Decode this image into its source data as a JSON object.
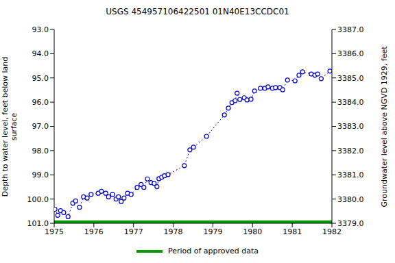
{
  "chart_data": {
    "type": "line",
    "title": "USGS 454957106422501 01N40E13CCDC01",
    "y_label": "Depth to water level, feet below land surface",
    "y_label_lines": [
      "Depth to water level, feet below land",
      "surface"
    ],
    "y2_label": "Groundwater level above NGVD 1929, feet",
    "xlim": [
      1975,
      1982
    ],
    "xticks": [
      1975,
      1976,
      1977,
      1978,
      1979,
      1980,
      1981,
      1982
    ],
    "ylim": [
      93,
      101
    ],
    "yticks": [
      {
        "value": 93,
        "label": "93.0"
      },
      {
        "value": 94,
        "label": "94.0"
      },
      {
        "value": 95,
        "label": "95.0"
      },
      {
        "value": 96,
        "label": "96.0"
      },
      {
        "value": 97,
        "label": "97.0"
      },
      {
        "value": 98,
        "label": "98.0"
      },
      {
        "value": 99,
        "label": "99.0"
      },
      {
        "value": 100,
        "label": "100.0"
      },
      {
        "value": 101,
        "label": "101.0"
      }
    ],
    "y2lim": [
      3379,
      3387
    ],
    "y2ticks": [
      {
        "value": 3379,
        "label": "3379.0"
      },
      {
        "value": 3380,
        "label": "3380.0"
      },
      {
        "value": 3381,
        "label": "3381.0"
      },
      {
        "value": 3382,
        "label": "3382.0"
      },
      {
        "value": 3383,
        "label": "3383.0"
      },
      {
        "value": 3384,
        "label": "3384.0"
      },
      {
        "value": 3385,
        "label": "3385.0"
      },
      {
        "value": 3386,
        "label": "3386.0"
      },
      {
        "value": 3387,
        "label": "3387.0"
      }
    ],
    "series": [
      {
        "name": "Depth to water level",
        "color": "#0000cc",
        "marker": "circle",
        "line_style": "dotted",
        "x": [
          1975.02,
          1975.09,
          1975.16,
          1975.24,
          1975.35,
          1975.47,
          1975.54,
          1975.64,
          1975.74,
          1975.83,
          1975.93,
          1976.11,
          1976.19,
          1976.3,
          1976.37,
          1976.47,
          1976.56,
          1976.62,
          1976.69,
          1976.76,
          1976.85,
          1976.94,
          1977.09,
          1977.19,
          1977.26,
          1977.35,
          1977.44,
          1977.52,
          1977.59,
          1977.64,
          1977.71,
          1977.78,
          1977.87,
          1978.28,
          1978.42,
          1978.51,
          1978.84,
          1979.29,
          1979.39,
          1979.48,
          1979.56,
          1979.61,
          1979.68,
          1979.79,
          1979.86,
          1979.96,
          1980.05,
          1980.2,
          1980.31,
          1980.39,
          1980.5,
          1980.58,
          1980.69,
          1980.76,
          1980.88,
          1981.07,
          1981.17,
          1981.26,
          1981.48,
          1981.57,
          1981.64,
          1981.73,
          1981.95
        ],
        "values": [
          100.42,
          100.67,
          100.48,
          100.56,
          100.73,
          100.17,
          100.08,
          100.34,
          99.91,
          99.96,
          99.81,
          99.76,
          99.68,
          99.76,
          99.91,
          99.81,
          100.0,
          99.91,
          100.1,
          99.96,
          99.76,
          99.81,
          99.52,
          99.4,
          99.52,
          99.17,
          99.32,
          99.35,
          99.49,
          99.16,
          99.1,
          99.04,
          98.99,
          98.62,
          97.97,
          97.86,
          97.41,
          96.53,
          96.25,
          96.02,
          95.94,
          95.63,
          95.89,
          95.82,
          95.91,
          95.88,
          95.54,
          95.43,
          95.43,
          95.37,
          95.43,
          95.4,
          95.4,
          95.49,
          95.09,
          95.12,
          94.89,
          94.75,
          94.84,
          94.89,
          94.84,
          95.03,
          94.72
        ]
      },
      {
        "name": "Period of approved data",
        "color": "#009900",
        "line_style": "solid",
        "x": [
          1975,
          1982
        ],
        "values": [
          100.95,
          100.95
        ]
      }
    ]
  }
}
